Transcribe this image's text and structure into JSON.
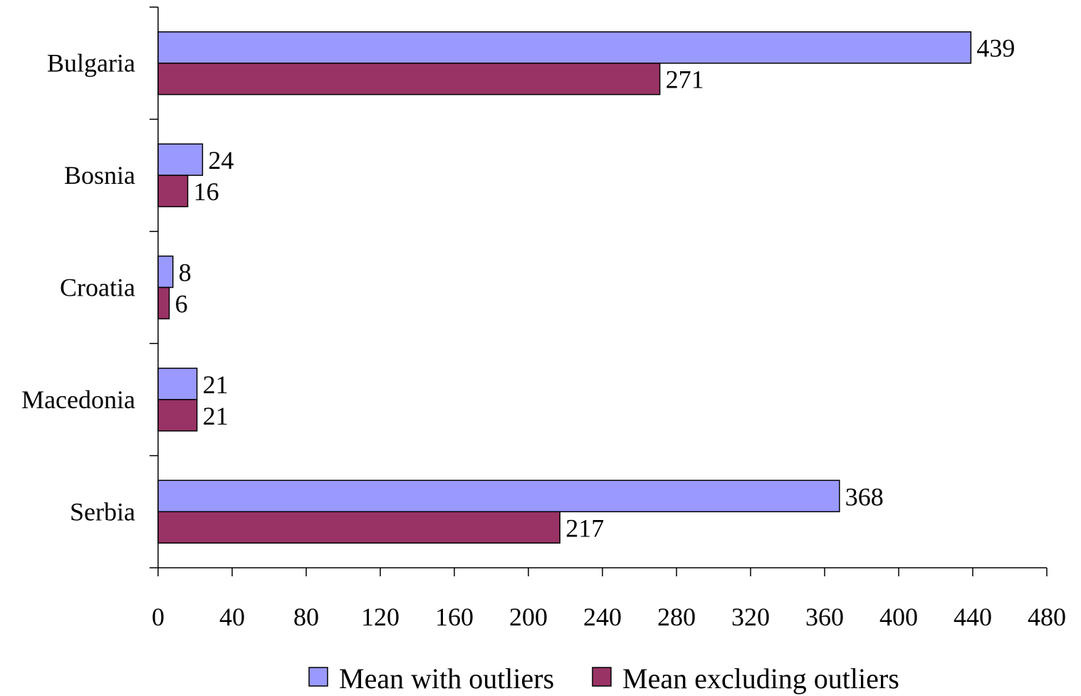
{
  "chart_data": {
    "type": "bar",
    "orientation": "horizontal",
    "title": "",
    "xlabel": "",
    "ylabel": "",
    "categories": [
      "Bulgaria",
      "Bosnia",
      "Croatia",
      "Macedonia",
      "Serbia"
    ],
    "series": [
      {
        "name": "Mean with outliers",
        "color": "#9999ff",
        "values": [
          439,
          24,
          8,
          21,
          368
        ]
      },
      {
        "name": "Mean excluding outliers",
        "color": "#993366",
        "values": [
          271,
          16,
          6,
          21,
          217
        ]
      }
    ],
    "xlim": [
      0,
      480
    ],
    "xticks": [
      "0",
      "40",
      "80",
      "120",
      "160",
      "200",
      "240",
      "280",
      "320",
      "360",
      "400",
      "440",
      "480"
    ],
    "data_labels": true,
    "grid": false,
    "legend": "bottom"
  }
}
